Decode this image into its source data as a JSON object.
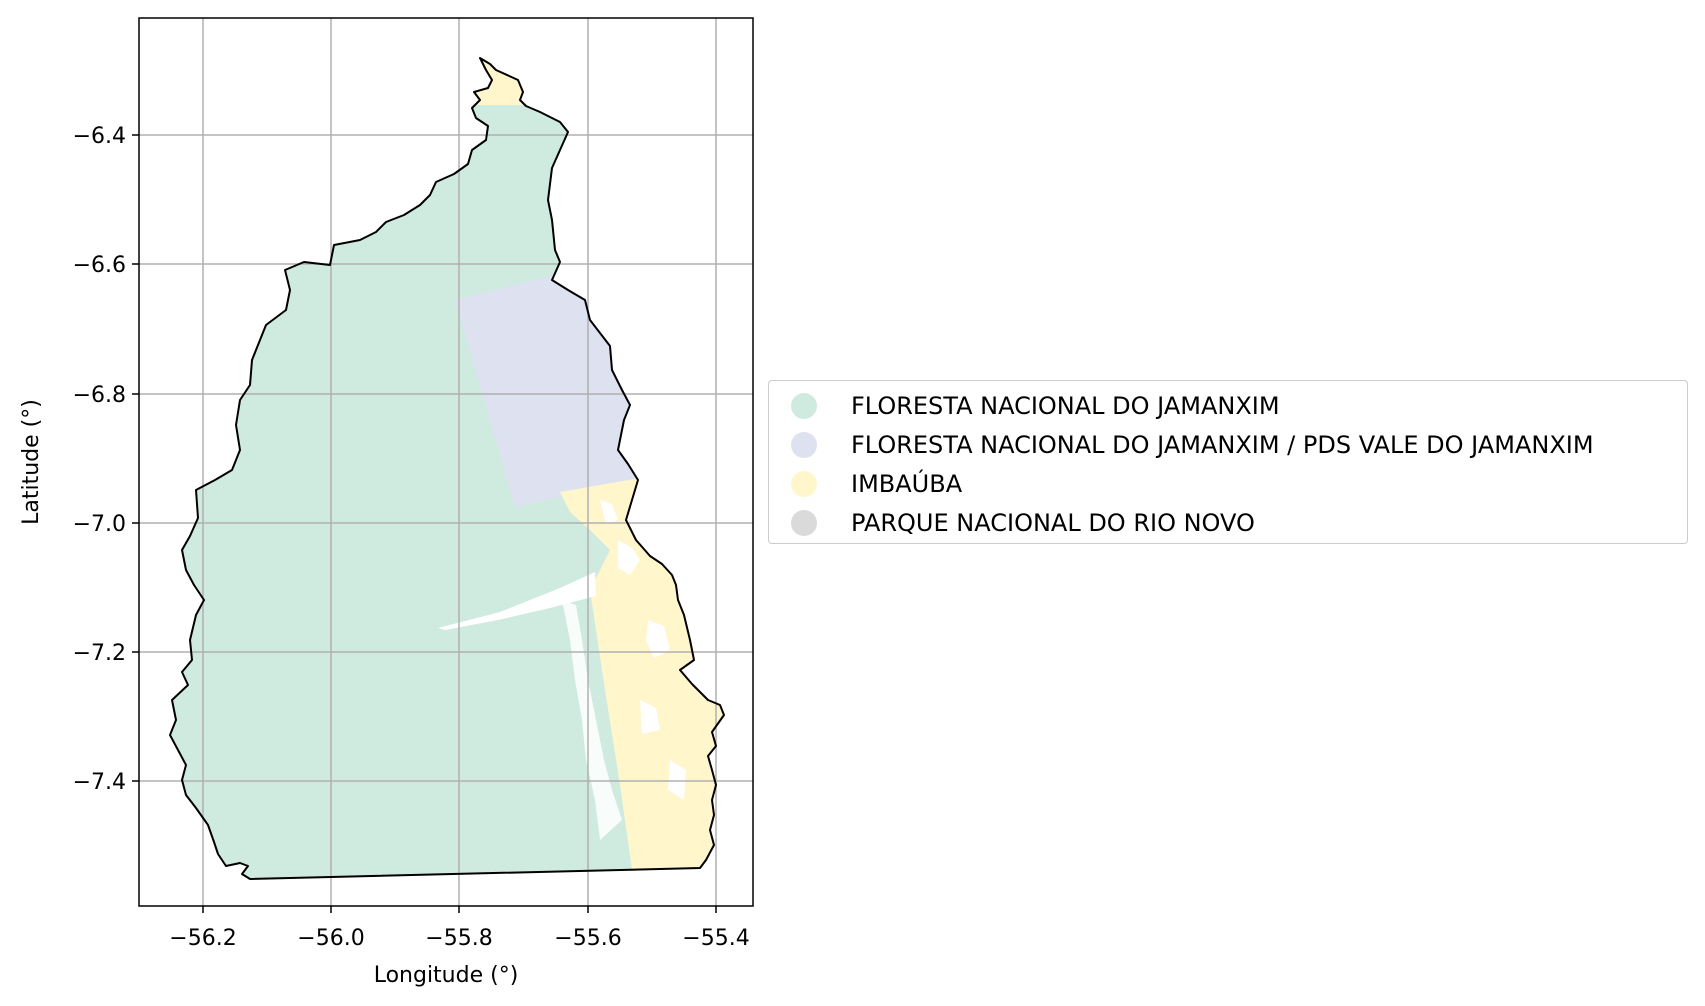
{
  "map": {
    "xlabel": "Longitude (°)",
    "ylabel": "Latitude (°)",
    "x_ticks": [
      "−56.2",
      "−56.0",
      "−55.8",
      "−55.6",
      "−55.4"
    ],
    "y_ticks": [
      "−6.4",
      "−6.6",
      "−6.8",
      "−7.0",
      "−7.2",
      "−7.4"
    ],
    "xlim": [
      -56.3,
      -55.34
    ],
    "ylim": [
      -7.585,
      -6.22
    ],
    "grid": true,
    "legend_placement": "center-right outside axes",
    "colors": {
      "floresta": "#cfeadf",
      "pds": "#dee2f0",
      "imbauba": "#fff6cc",
      "parque": "#dadada",
      "outline": "#000000",
      "grid": "#b0b0b0"
    }
  },
  "legend": {
    "items": [
      {
        "label": "FLORESTA NACIONAL DO JAMANXIM",
        "color": "#cfeadf"
      },
      {
        "label": "FLORESTA NACIONAL DO JAMANXIM / PDS VALE DO JAMANXIM",
        "color": "#dee2f0"
      },
      {
        "label": "IMBAÚBA",
        "color": "#fff6cc"
      },
      {
        "label": "PARQUE NACIONAL DO RIO NOVO",
        "color": "#dadada"
      }
    ]
  }
}
